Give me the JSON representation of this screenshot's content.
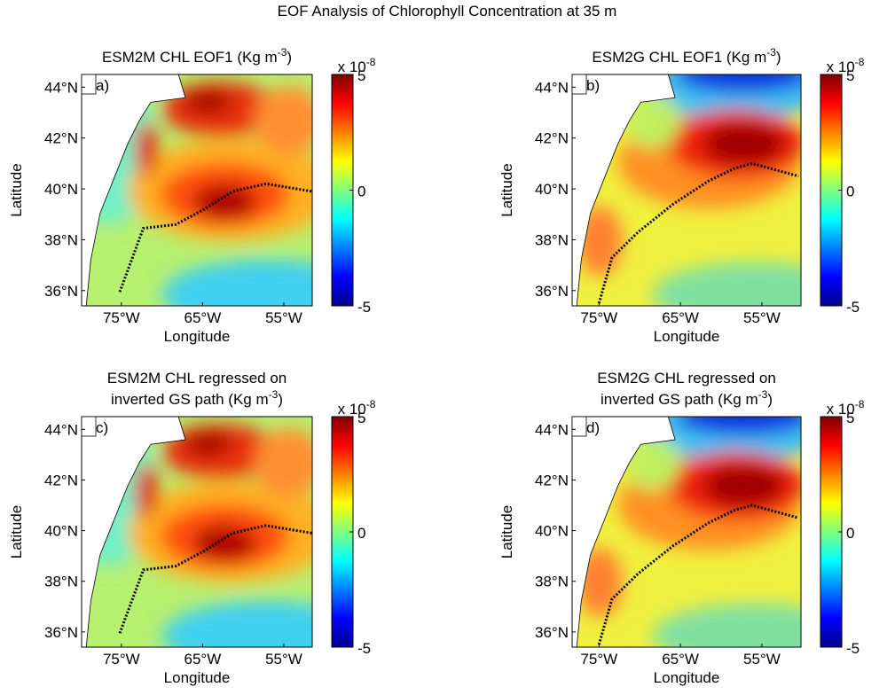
{
  "title": "EOF Analysis of Chlorophyll Concentration at 35 m",
  "chart_data": [
    {
      "type": "contour",
      "label": "a)",
      "title": [
        "ESM2M CHL EOF1 (Kg m"
      ],
      "title_sup": "-3",
      "title_suffix": ")",
      "x_label": "Longitude",
      "y_label": "Latitude",
      "xlim": [
        -79.9,
        -51.5
      ],
      "ylim": [
        35.4,
        44.5
      ],
      "xticks": [
        {
          "value": -75,
          "label": "75°W"
        },
        {
          "value": -65,
          "label": "65°W"
        },
        {
          "value": -55,
          "label": "55°W"
        }
      ],
      "yticks": [
        {
          "value": 36,
          "label": "36°N"
        },
        {
          "value": 38,
          "label": "38°N"
        },
        {
          "value": 40,
          "label": "40°N"
        },
        {
          "value": 42,
          "label": "42°N"
        },
        {
          "value": 44,
          "label": "44°N"
        }
      ],
      "clim": [
        -5,
        5
      ],
      "cticks": [
        5,
        0,
        -5
      ],
      "colorbar_multiplier": "x 10",
      "colorbar_exponent": "-8",
      "series": [
        {
          "color": "#000000",
          "x": [
            -75.2,
            -72.3,
            -68.3,
            -64.8,
            -61.3,
            -57.2,
            -51.5
          ],
          "values": [
            35.95,
            38.45,
            38.6,
            39.2,
            39.9,
            40.2,
            39.9
          ]
        }
      ]
    },
    {
      "type": "contour",
      "label": "b)",
      "title": [
        "ESM2G CHL EOF1 (Kg m"
      ],
      "title_sup": "-3",
      "title_suffix": ")",
      "x_label": "Longitude",
      "y_label": "Latitude",
      "xlim": [
        -78.3,
        -50.2
      ],
      "ylim": [
        35.4,
        44.5
      ],
      "xticks": [
        {
          "value": -75,
          "label": "75°W"
        },
        {
          "value": -65,
          "label": "65°W"
        },
        {
          "value": -55,
          "label": "55°W"
        }
      ],
      "yticks": [
        {
          "value": 36,
          "label": "36°N"
        },
        {
          "value": 38,
          "label": "38°N"
        },
        {
          "value": 40,
          "label": "40°N"
        },
        {
          "value": 42,
          "label": "42°N"
        },
        {
          "value": 44,
          "label": "44°N"
        }
      ],
      "clim": [
        -5,
        5
      ],
      "cticks": [
        5,
        0,
        -5
      ],
      "colorbar_multiplier": "x 10",
      "colorbar_exponent": "-8",
      "series": [
        {
          "color": "#000000",
          "x": [
            -75,
            -73.4,
            -70.2,
            -65.9,
            -61.6,
            -58.4,
            -56.2,
            -50.5
          ],
          "values": [
            35.5,
            37.3,
            38.3,
            39.4,
            40.3,
            40.8,
            41,
            40.5
          ]
        }
      ]
    },
    {
      "type": "contour",
      "label": "c)",
      "title": [
        "ESM2M CHL regressed on",
        "inverted GS path (Kg m"
      ],
      "title_sup": "-3",
      "title_suffix": ")",
      "x_label": "Longitude",
      "y_label": "Latitude",
      "xlim": [
        -79.9,
        -51.5
      ],
      "ylim": [
        35.4,
        44.5
      ],
      "xticks": [
        {
          "value": -75,
          "label": "75°W"
        },
        {
          "value": -65,
          "label": "65°W"
        },
        {
          "value": -55,
          "label": "55°W"
        }
      ],
      "yticks": [
        {
          "value": 36,
          "label": "36°N"
        },
        {
          "value": 38,
          "label": "38°N"
        },
        {
          "value": 40,
          "label": "40°N"
        },
        {
          "value": 42,
          "label": "42°N"
        },
        {
          "value": 44,
          "label": "44°N"
        }
      ],
      "clim": [
        -5,
        5
      ],
      "cticks": [
        5,
        0,
        -5
      ],
      "colorbar_multiplier": "x 10",
      "colorbar_exponent": "-8",
      "series": [
        {
          "color": "#000000",
          "x": [
            -75.2,
            -72.3,
            -68.3,
            -64.8,
            -61.3,
            -57.2,
            -51.5
          ],
          "values": [
            35.95,
            38.45,
            38.6,
            39.2,
            39.9,
            40.2,
            39.9
          ]
        }
      ]
    },
    {
      "type": "contour",
      "label": "d)",
      "title": [
        "ESM2G CHL regressed on",
        "inverted GS path (Kg m"
      ],
      "title_sup": "-3",
      "title_suffix": ")",
      "x_label": "Longitude",
      "y_label": "Latitude",
      "xlim": [
        -78.3,
        -50.2
      ],
      "ylim": [
        35.4,
        44.5
      ],
      "xticks": [
        {
          "value": -75,
          "label": "75°W"
        },
        {
          "value": -65,
          "label": "65°W"
        },
        {
          "value": -55,
          "label": "55°W"
        }
      ],
      "yticks": [
        {
          "value": 36,
          "label": "36°N"
        },
        {
          "value": 38,
          "label": "38°N"
        },
        {
          "value": 40,
          "label": "40°N"
        },
        {
          "value": 42,
          "label": "42°N"
        },
        {
          "value": 44,
          "label": "44°N"
        }
      ],
      "clim": [
        -5,
        5
      ],
      "cticks": [
        5,
        0,
        -5
      ],
      "colorbar_multiplier": "x 10",
      "colorbar_exponent": "-8",
      "series": [
        {
          "color": "#000000",
          "x": [
            -75,
            -73.4,
            -70.2,
            -65.9,
            -61.6,
            -58.4,
            -56.2,
            -50.5
          ],
          "values": [
            35.5,
            37.3,
            38.3,
            39.4,
            40.3,
            40.8,
            41,
            40.5
          ]
        }
      ]
    }
  ]
}
